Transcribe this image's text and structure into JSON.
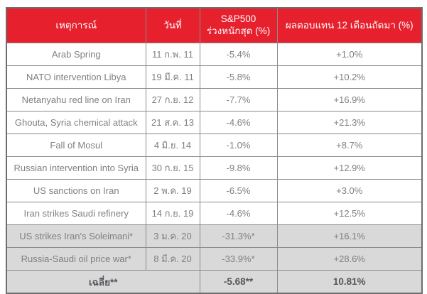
{
  "colors": {
    "header_bg": "#e7202e",
    "header_text": "#ffffff",
    "row_text": "#7e8083",
    "shaded_row_bg": "#d9d9d9",
    "summary_text": "#55565a",
    "border": "#8b8b8b",
    "outer_border": "#6e6e6e",
    "page_bg": "#ffffff"
  },
  "table": {
    "headers": {
      "event": "เหตุการณ์",
      "date": "วันที่",
      "drop": "S&P500\nร่วงหนักสุด (%)",
      "return": "ผลตอบแทน 12 เดือนถัดมา (%)"
    },
    "rows": [
      {
        "event": "Arab Spring",
        "date": "11 ก.พ. 11",
        "drop": "-5.4%",
        "return": "+1.0%"
      },
      {
        "event": "NATO intervention Libya",
        "date": "19 มี.ค. 11",
        "drop": "-5.8%",
        "return": "+10.2%"
      },
      {
        "event": "Netanyahu red line on Iran",
        "date": "27 ก.ย. 12",
        "drop": "-7.7%",
        "return": "+16.9%"
      },
      {
        "event": "Ghouta, Syria chemical attack",
        "date": "21 ส.ค. 13",
        "drop": "-4.6%",
        "return": "+21.3%"
      },
      {
        "event": "Fall of Mosul",
        "date": "4 มิ.ย. 14",
        "drop": "-1.0%",
        "return": "+8.7%"
      },
      {
        "event": "Russian intervention into Syria",
        "date": "30 ก.ย. 15",
        "drop": "-9.8%",
        "return": "+12.9%"
      },
      {
        "event": "US sanctions on Iran",
        "date": "2 พ.ค. 19",
        "drop": "-6.5%",
        "return": "+3.0%"
      },
      {
        "event": "Iran strikes Saudi refinery",
        "date": "14 ก.ย. 19",
        "drop": "-4.6%",
        "return": "+12.5%"
      },
      {
        "event": "US strikes Iran's Soleimani*",
        "date": "3 ม.ค. 20",
        "drop": "-31.3%*",
        "return": "+16.1%"
      },
      {
        "event": "Russia-Saudi oil price war*",
        "date": "8 มี.ค. 20",
        "drop": "-33.9%*",
        "return": "+28.6%"
      }
    ],
    "summary": {
      "label": "เฉลี่ย**",
      "drop": "-5.68**",
      "return": "10.81%"
    }
  },
  "chart_data": {
    "type": "table",
    "title": "S&P500 drawdown and 12-month forward return around geopolitical events",
    "columns": [
      "เหตุการณ์",
      "วันที่",
      "S&P500 ร่วงหนักสุด (%)",
      "ผลตอบแทน 12 เดือนถัดมา (%)"
    ],
    "rows": [
      [
        "Arab Spring",
        "11 ก.พ. 11",
        -5.4,
        1.0
      ],
      [
        "NATO intervention Libya",
        "19 มี.ค. 11",
        -5.8,
        10.2
      ],
      [
        "Netanyahu red line on Iran",
        "27 ก.ย. 12",
        -7.7,
        16.9
      ],
      [
        "Ghouta, Syria chemical attack",
        "21 ส.ค. 13",
        -4.6,
        21.3
      ],
      [
        "Fall of Mosul",
        "4 มิ.ย. 14",
        -1.0,
        8.7
      ],
      [
        "Russian intervention into Syria",
        "30 ก.ย. 15",
        -9.8,
        12.9
      ],
      [
        "US sanctions on Iran",
        "2 พ.ค. 19",
        -6.5,
        3.0
      ],
      [
        "Iran strikes Saudi refinery",
        "14 ก.ย. 19",
        -4.6,
        12.5
      ],
      [
        "US strikes Iran's Soleimani*",
        "3 ม.ค. 20",
        -31.3,
        16.1
      ],
      [
        "Russia-Saudi oil price war*",
        "8 มี.ค. 20",
        -33.9,
        28.6
      ]
    ],
    "summary_row": [
      "เฉลี่ย**",
      null,
      -5.68,
      10.81
    ],
    "footnote_markers": [
      "*",
      "**"
    ]
  }
}
